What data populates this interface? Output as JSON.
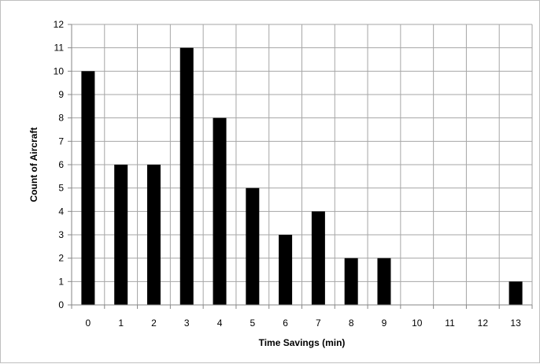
{
  "chart_data": {
    "type": "bar",
    "categories": [
      "0",
      "1",
      "2",
      "3",
      "4",
      "5",
      "6",
      "7",
      "8",
      "9",
      "10",
      "11",
      "12",
      "13"
    ],
    "values": [
      10,
      6,
      6,
      11,
      8,
      5,
      3,
      4,
      2,
      2,
      0,
      0,
      0,
      1
    ],
    "title": "",
    "xlabel": "Time Savings  (min)",
    "ylabel": "Count of Aircraft",
    "ylim": [
      0,
      12
    ],
    "yticks": [
      0,
      1,
      2,
      3,
      4,
      5,
      6,
      7,
      8,
      9,
      10,
      11,
      12
    ],
    "grid": true,
    "bar_color": "#000000",
    "grid_color": "#a6a6a6"
  }
}
